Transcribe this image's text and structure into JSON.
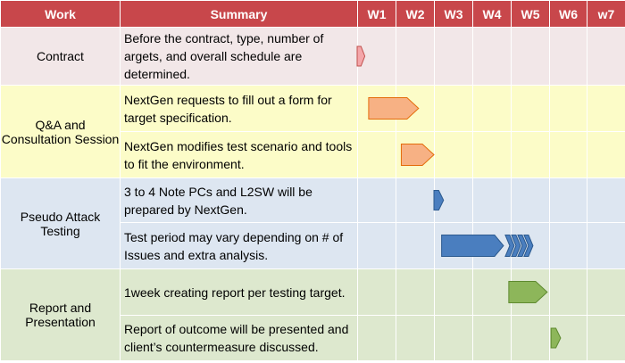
{
  "header": {
    "work": "Work",
    "summary": "Summary",
    "weeks": [
      "W1",
      "W2",
      "W3",
      "W4",
      "W5",
      "W6",
      "w7"
    ]
  },
  "groups": [
    {
      "work": "Contract",
      "rows": [
        {
          "summary": "Before the contract, type, number of argets, and overall schedule are determined.",
          "start": 0.0,
          "end": 0.2,
          "shape": "small",
          "color": "#f4a6a9",
          "stroke": "#c0504d"
        }
      ]
    },
    {
      "work": "Q&A and Consultation Session",
      "rows": [
        {
          "summary": "NextGen requests to fill out a form for target specification.",
          "start": 0.3,
          "end": 1.6,
          "shape": "pentagon",
          "color": "#f7b184",
          "stroke": "#e46c0a"
        },
        {
          "summary": "NextGen modifies test scenario and tools to fit the environment.",
          "start": 1.15,
          "end": 2.0,
          "shape": "pentagon",
          "color": "#f7b184",
          "stroke": "#e46c0a"
        }
      ]
    },
    {
      "work": "Pseudo Attack Testing",
      "rows": [
        {
          "summary": "3 to 4 Note PCs and L2SW will be prepared by NextGen.",
          "start": 2.0,
          "end": 2.25,
          "shape": "small",
          "color": "#4a7ebf",
          "stroke": "#2c5a8f"
        },
        {
          "summary": "Test period may vary depending on # of Issues and extra analysis.",
          "start": 2.2,
          "end": 4.8,
          "shape": "pentagon-chevrons",
          "color": "#4a7ebf",
          "stroke": "#2c5a8f"
        }
      ]
    },
    {
      "work": "Report and Presentation",
      "rows": [
        {
          "summary": "1week creating report per testing target.",
          "start": 3.95,
          "end": 4.95,
          "shape": "pentagon",
          "color": "#8db65a",
          "stroke": "#5e8a2f"
        },
        {
          "summary": "Report of outcome will be presented and client’s countermeasure discussed.",
          "start": 5.05,
          "end": 5.3,
          "shape": "small",
          "color": "#8db65a",
          "stroke": "#5e8a2f"
        }
      ]
    }
  ]
}
